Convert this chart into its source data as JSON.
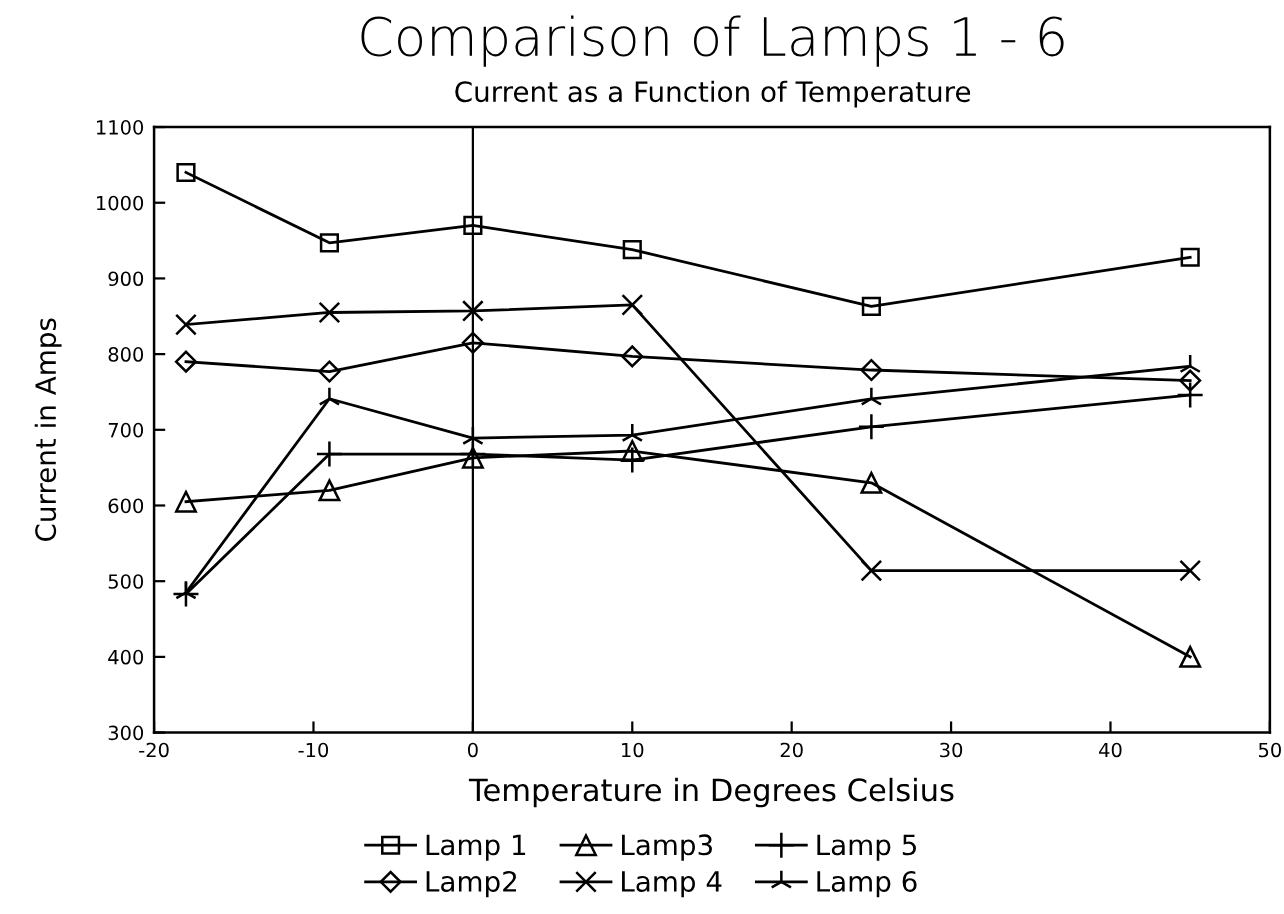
{
  "chart_data": {
    "type": "line",
    "title": "Comparison of Lamps 1 - 6",
    "subtitle": "Current as a Function of Temperature",
    "xlabel": "Temperature in Degrees Celsius",
    "ylabel": "Current in Amps",
    "xlim": [
      -20,
      50
    ],
    "xticks": [
      -20,
      -10,
      0,
      10,
      20,
      30,
      40,
      50
    ],
    "ylim": [
      300,
      1100
    ],
    "yticks": [
      300,
      400,
      500,
      600,
      700,
      800,
      900,
      1000,
      1100
    ],
    "grid": false,
    "legend": "bottom",
    "line_style": "solid",
    "ref_lines": [
      {
        "axis": "x",
        "value": 0,
        "color": "#000000"
      }
    ],
    "x": [
      -18,
      -9,
      0,
      10,
      25,
      45
    ],
    "series": [
      {
        "name": "Lamp 1",
        "color": "#000000",
        "marker": "square",
        "values": [
          1040,
          947,
          970,
          938,
          863,
          928
        ]
      },
      {
        "name": "Lamp2",
        "color": "#000000",
        "marker": "diamond",
        "values": [
          790,
          777,
          815,
          797,
          779,
          765
        ]
      },
      {
        "name": "Lamp3",
        "color": "#000000",
        "marker": "triangle",
        "values": [
          605,
          620,
          663,
          672,
          630,
          400
        ]
      },
      {
        "name": "Lamp 4",
        "color": "#000000",
        "marker": "cross",
        "values": [
          839,
          855,
          857,
          865,
          514,
          514
        ]
      },
      {
        "name": "Lamp 5",
        "color": "#000000",
        "marker": "plus",
        "values": [
          483,
          668,
          668,
          660,
          704,
          746
        ]
      },
      {
        "name": "Lamp 6",
        "color": "#000000",
        "marker": "star",
        "values": [
          485,
          741,
          689,
          693,
          741,
          784
        ]
      }
    ]
  }
}
